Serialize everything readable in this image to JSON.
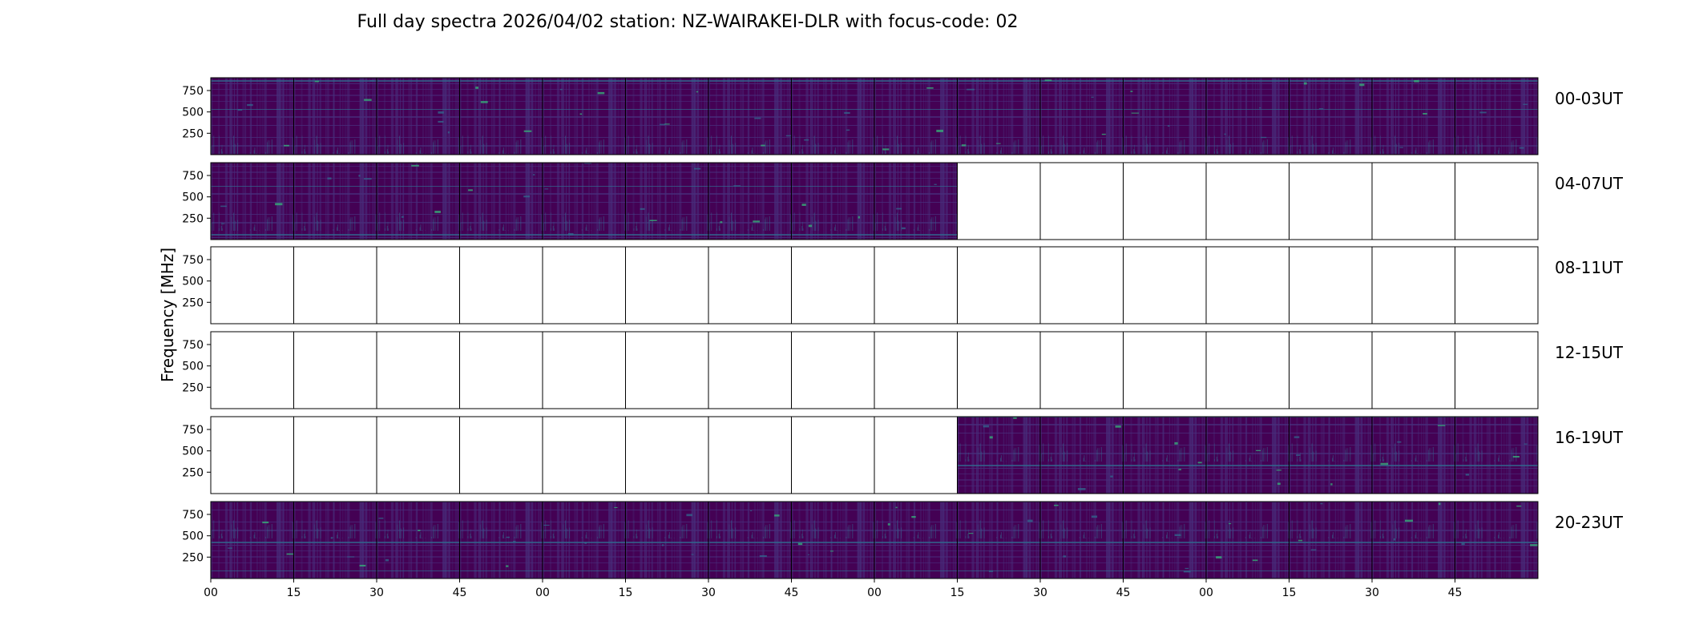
{
  "chart_data": {
    "type": "heatmap",
    "title": "Full day spectra 2026/04/02 station: NZ-WAIRAKEI-DLR with focus-code: 02",
    "ylabel": "Frequency [MHz]",
    "xlabel": "",
    "y_ticks": [
      "750",
      "500",
      "250"
    ],
    "ylim": [
      0,
      900
    ],
    "x_ticks": [
      "00",
      "15",
      "30",
      "45",
      "00",
      "15",
      "30",
      "45",
      "00",
      "15",
      "30",
      "45",
      "00",
      "15",
      "30",
      "45"
    ],
    "colormap": "viridis",
    "colors": {
      "background": "#440154",
      "low": "#472d7b",
      "mid": "#31688e",
      "high": "#35b779",
      "peak": "#90d743"
    },
    "panels_per_row": 16,
    "rows": [
      {
        "label": "00-03UT",
        "filled": [
          true,
          true,
          true,
          true,
          true,
          true,
          true,
          true,
          true,
          true,
          true,
          true,
          true,
          true,
          true,
          true
        ],
        "partial_end": 1.0
      },
      {
        "label": "04-07UT",
        "filled": [
          true,
          true,
          true,
          true,
          true,
          true,
          true,
          true,
          true,
          false,
          false,
          false,
          false,
          false,
          false,
          false
        ],
        "partial_end": 1.0
      },
      {
        "label": "08-11UT",
        "filled": [
          false,
          false,
          false,
          false,
          false,
          false,
          false,
          false,
          false,
          false,
          false,
          false,
          false,
          false,
          false,
          false
        ],
        "partial_end": 1.0
      },
      {
        "label": "12-15UT",
        "filled": [
          false,
          false,
          false,
          false,
          false,
          false,
          false,
          false,
          false,
          false,
          false,
          false,
          false,
          false,
          false,
          false
        ],
        "partial_end": 1.0
      },
      {
        "label": "16-19UT",
        "filled": [
          false,
          false,
          false,
          false,
          false,
          false,
          false,
          false,
          false,
          true,
          true,
          true,
          true,
          true,
          true,
          true
        ],
        "partial_end": 1.0
      },
      {
        "label": "20-23UT",
        "filled": [
          true,
          true,
          true,
          true,
          true,
          true,
          true,
          true,
          true,
          true,
          true,
          true,
          true,
          true,
          true,
          true
        ],
        "partial_end": 1.0
      }
    ]
  }
}
